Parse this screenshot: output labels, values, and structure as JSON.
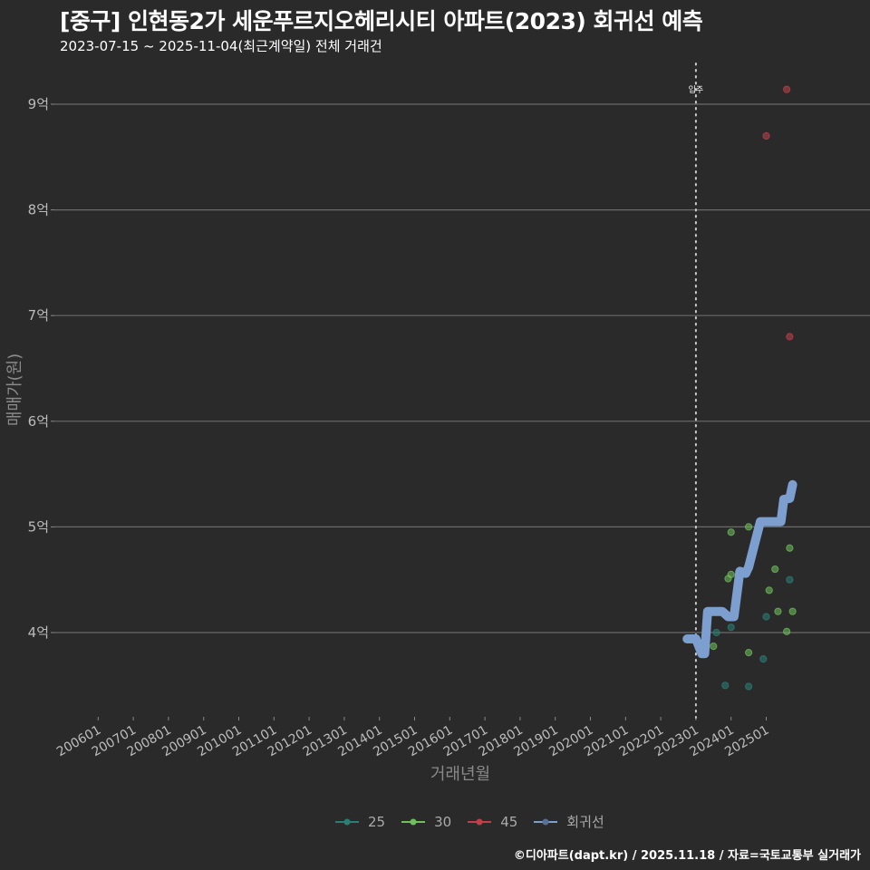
{
  "header": {
    "title": "[중구] 인현동2가 세운푸르지오헤리시티 아파트(2023) 회귀선 예측",
    "subtitle": "2023-07-15 ~ 2025-11-04(최근계약일) 전체 거래건"
  },
  "caption": "©디아파트(dapt.kr) / 2025.11.18 / 자료=국토교통부 실거래가",
  "colors": {
    "background": "#2a2a2b",
    "grid": "#6b6b6b",
    "s25": "#2a7f74",
    "s30": "#6fbf5b",
    "s45": "#c0404a",
    "regression": "#7d9fcf"
  },
  "chart_data": {
    "type": "scatter",
    "title": "[중구] 인현동2가 세운푸르지오헤리시티 아파트(2023) 회귀선 예측",
    "subtitle": "2023-07-15 ~ 2025-11-04(최근계약일) 전체 거래건",
    "xlabel": "거래년월",
    "ylabel": "매매가(원)",
    "x_ticks": [
      "200601",
      "200701",
      "200801",
      "200901",
      "201001",
      "201101",
      "201201",
      "201301",
      "201401",
      "201501",
      "201601",
      "201701",
      "201801",
      "201901",
      "202001",
      "202101",
      "202201",
      "202301",
      "202401",
      "202501"
    ],
    "y_ticks": [
      "4억",
      "5억",
      "6억",
      "7억",
      "8억",
      "9억"
    ],
    "y_tick_values": [
      4,
      5,
      6,
      7,
      8,
      9
    ],
    "ylim": [
      3.25,
      9.4
    ],
    "y_unit": "억",
    "grid": true,
    "legend_position": "bottom",
    "annotations": [
      {
        "type": "vline",
        "x": "202301",
        "label": "입주",
        "style": "dotted"
      }
    ],
    "series": [
      {
        "name": "25",
        "type": "scatter",
        "points": [
          {
            "x": "2023-08",
            "y": 4.0
          },
          {
            "x": "2023-11",
            "y": 3.5
          },
          {
            "x": "2024-01",
            "y": 4.05
          },
          {
            "x": "2024-07",
            "y": 3.49
          },
          {
            "x": "2024-12",
            "y": 3.75
          },
          {
            "x": "2025-01",
            "y": 4.15
          },
          {
            "x": "2025-09",
            "y": 4.5
          }
        ]
      },
      {
        "name": "30",
        "type": "scatter",
        "points": [
          {
            "x": "2023-07",
            "y": 3.87
          },
          {
            "x": "2023-12",
            "y": 4.51
          },
          {
            "x": "2024-01",
            "y": 4.55
          },
          {
            "x": "2024-01",
            "y": 4.95
          },
          {
            "x": "2024-07",
            "y": 5.0
          },
          {
            "x": "2024-07",
            "y": 3.81
          },
          {
            "x": "2025-02",
            "y": 4.4
          },
          {
            "x": "2025-04",
            "y": 4.6
          },
          {
            "x": "2025-05",
            "y": 4.2
          },
          {
            "x": "2025-08",
            "y": 4.01
          },
          {
            "x": "2025-09",
            "y": 4.8
          },
          {
            "x": "2025-10",
            "y": 4.2
          }
        ]
      },
      {
        "name": "45",
        "type": "scatter",
        "points": [
          {
            "x": "2025-01",
            "y": 8.7
          },
          {
            "x": "2025-08",
            "y": 9.14
          },
          {
            "x": "2025-09",
            "y": 6.8
          }
        ]
      },
      {
        "name": "회귀선",
        "type": "line",
        "points": [
          {
            "x": "2022-10",
            "y": 3.94
          },
          {
            "x": "2023-01",
            "y": 3.94
          },
          {
            "x": "2023-03",
            "y": 3.8
          },
          {
            "x": "2023-04",
            "y": 3.8
          },
          {
            "x": "2023-05",
            "y": 4.2
          },
          {
            "x": "2023-10",
            "y": 4.2
          },
          {
            "x": "2023-12",
            "y": 4.15
          },
          {
            "x": "2024-02",
            "y": 4.15
          },
          {
            "x": "2024-04",
            "y": 4.58
          },
          {
            "x": "2024-06",
            "y": 4.56
          },
          {
            "x": "2024-07",
            "y": 4.62
          },
          {
            "x": "2024-11",
            "y": 5.05
          },
          {
            "x": "2025-01",
            "y": 5.05
          },
          {
            "x": "2025-06",
            "y": 5.05
          },
          {
            "x": "2025-07",
            "y": 5.26
          },
          {
            "x": "2025-09",
            "y": 5.27
          },
          {
            "x": "2025-10",
            "y": 5.4
          }
        ]
      }
    ]
  },
  "legend": {
    "items": [
      {
        "label": "25",
        "color": "#2a7f74"
      },
      {
        "label": "30",
        "color": "#6fbf5b"
      },
      {
        "label": "45",
        "color": "#c0404a"
      },
      {
        "label": "회귀선",
        "color": "#7d9fcf"
      }
    ]
  }
}
